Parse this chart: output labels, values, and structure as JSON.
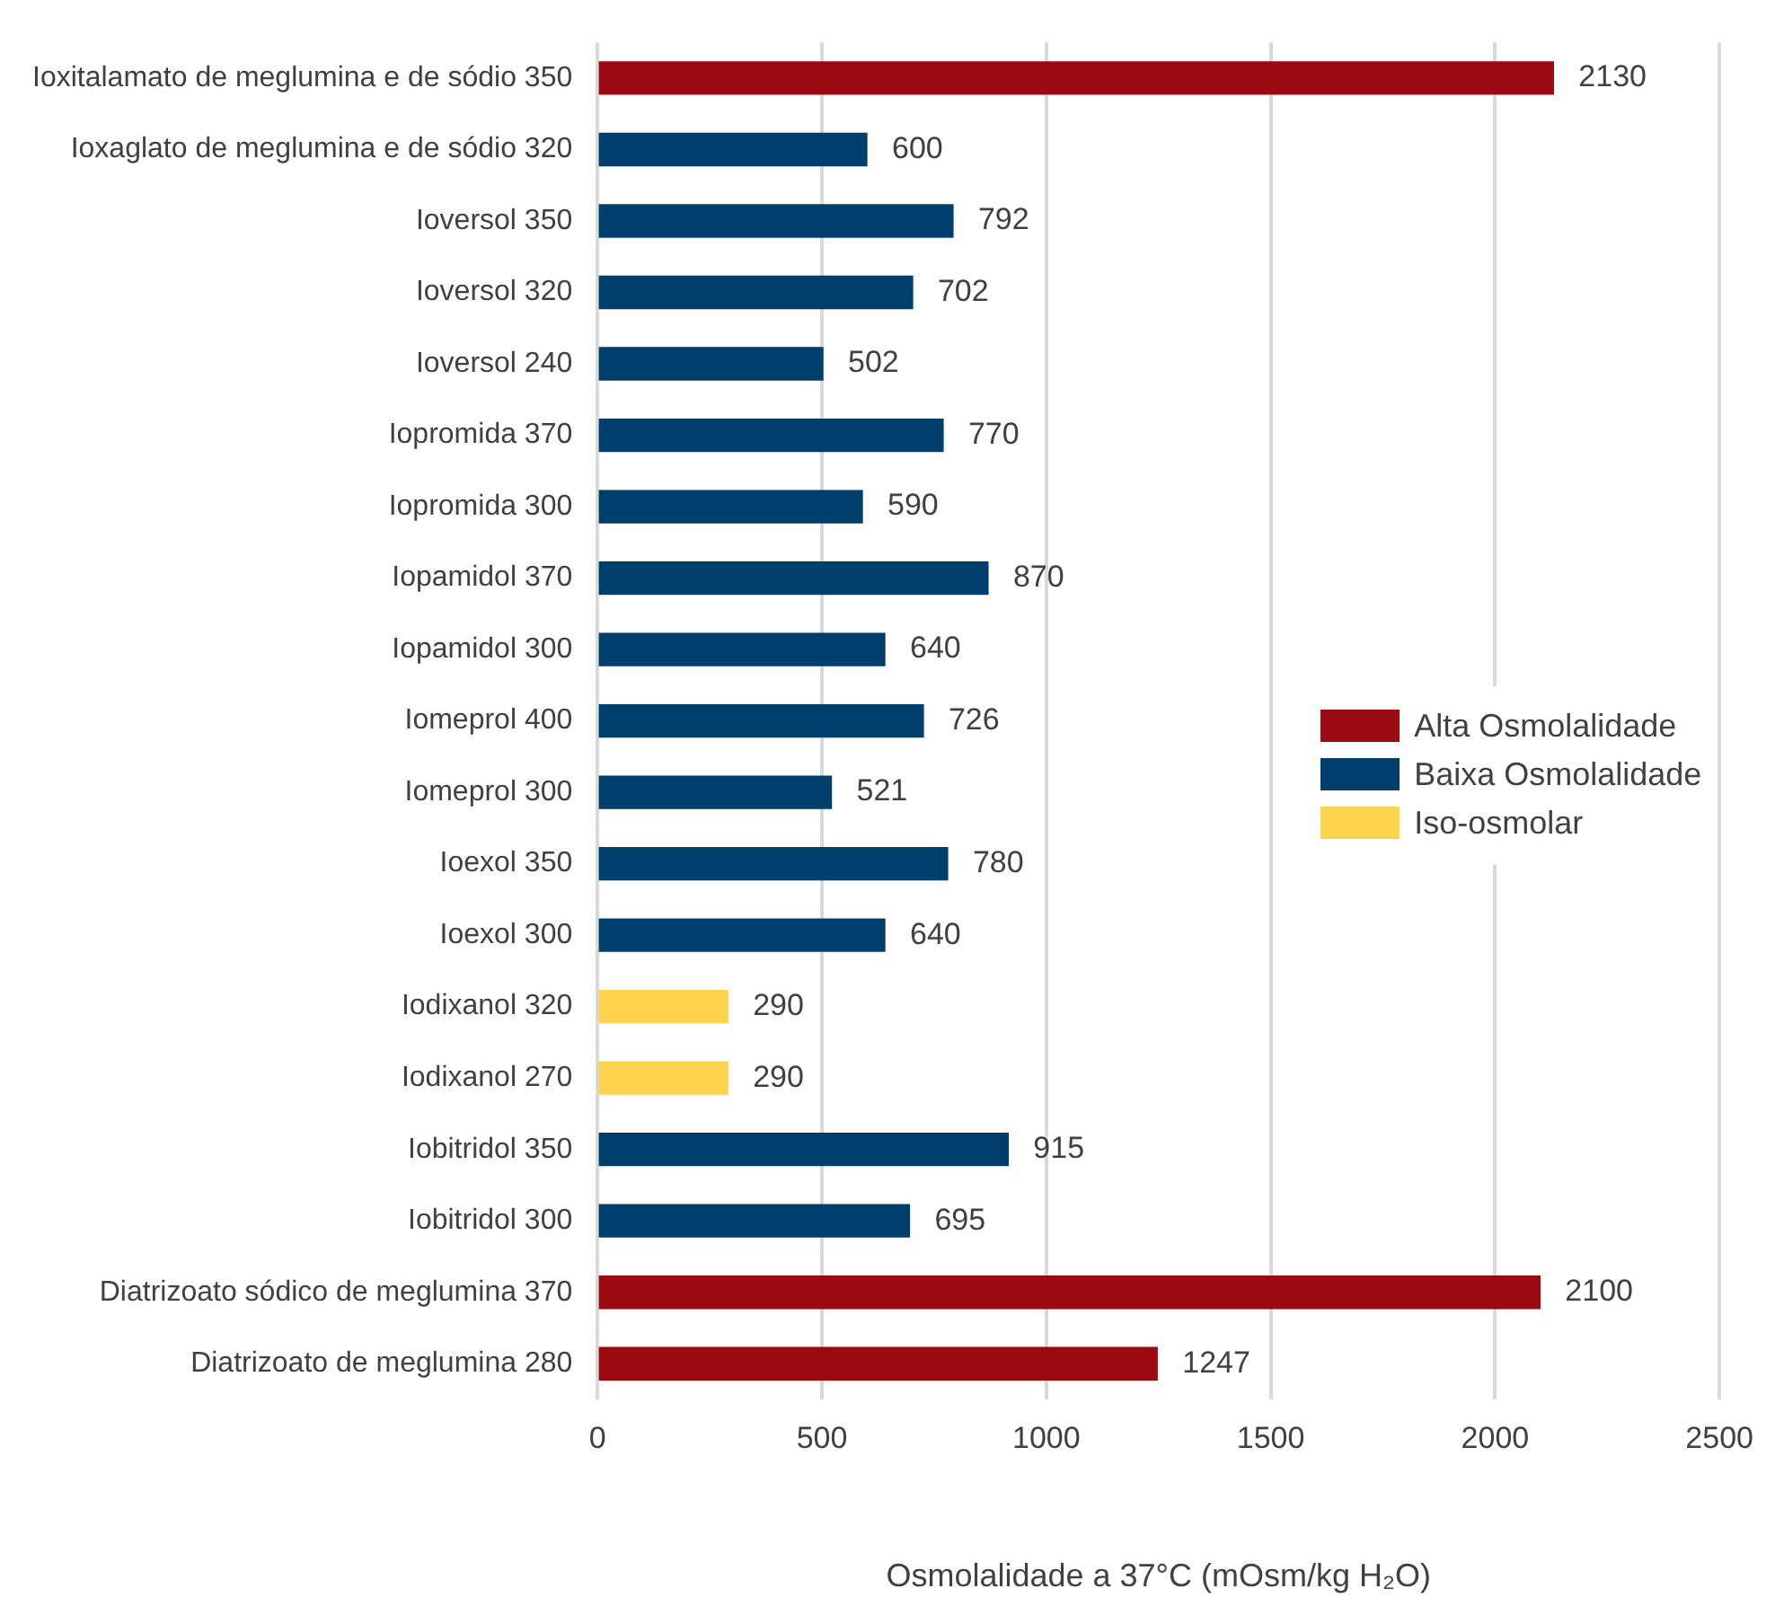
{
  "chart_data": {
    "type": "bar",
    "orientation": "horizontal",
    "stacked": true,
    "xlabel": "Osmolalidade a 37°C (mOsm/kg H₂O)",
    "categories": [
      "Ioxitalamato de meglumina e de sódio 350",
      "Ioxaglato de meglumina e de sódio 320",
      "Ioversol 350",
      "Ioversol 320",
      "Ioversol 240",
      "Iopromida 370",
      "Iopromida 300",
      "Iopamidol 370",
      "Iopamidol 300",
      "Iomeprol 400",
      "Iomeprol 300",
      "Ioexol 350",
      "Ioexol 300",
      "Iodixanol 320",
      "Iodixanol 270",
      "Iobitridol 350",
      "Iobitridol 300",
      "Diatrizoato sódico de meglumina 370",
      "Diatrizoato de meglumina 280"
    ],
    "series": [
      {
        "name": "Alta Osmolalidade",
        "color": "#9b0a10",
        "values": [
          2130,
          null,
          null,
          null,
          null,
          null,
          null,
          null,
          null,
          null,
          null,
          null,
          null,
          null,
          null,
          null,
          null,
          2100,
          1247
        ]
      },
      {
        "name": "Baixa Osmolalidade",
        "color": "#003f6b",
        "values": [
          null,
          600,
          792,
          702,
          502,
          770,
          590,
          870,
          640,
          726,
          521,
          780,
          640,
          null,
          null,
          915,
          695,
          null,
          null
        ]
      },
      {
        "name": "Iso-osmolar",
        "color": "#ffd34d",
        "values": [
          null,
          null,
          null,
          null,
          null,
          null,
          null,
          null,
          null,
          null,
          null,
          null,
          null,
          290,
          290,
          null,
          null,
          null,
          null
        ]
      }
    ],
    "xlim": [
      0,
      2500
    ],
    "xticks": [
      0,
      500,
      1000,
      1500,
      2000,
      2500
    ],
    "grid": "x",
    "legend": "right",
    "data_labels": true
  }
}
